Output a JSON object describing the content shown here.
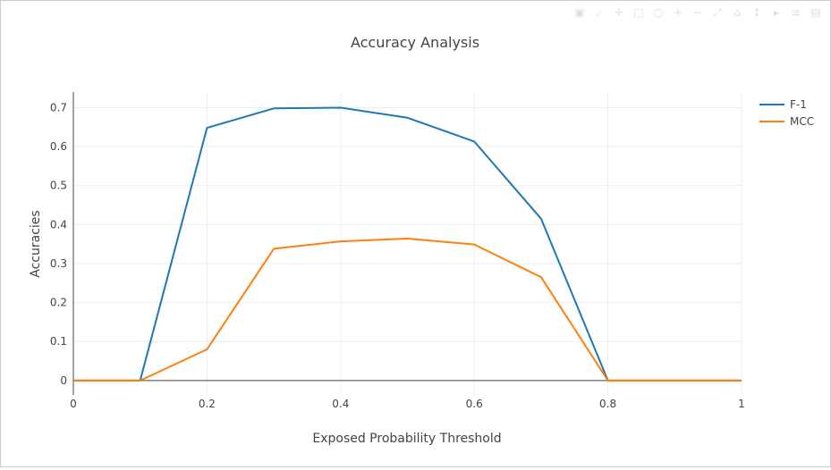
{
  "chart_data": {
    "type": "line",
    "title": "Accuracy Analysis",
    "xlabel": "Exposed Probability Threshold",
    "ylabel": "Accuracies",
    "xlim": [
      0,
      1
    ],
    "ylim": [
      -0.037,
      0.74
    ],
    "x_ticks": [
      0,
      0.2,
      0.4,
      0.6,
      0.8,
      1
    ],
    "x_tick_labels": [
      "0",
      "0.2",
      "0.4",
      "0.6",
      "0.8",
      "1"
    ],
    "y_ticks": [
      0,
      0.1,
      0.2,
      0.3,
      0.4,
      0.5,
      0.6,
      0.7
    ],
    "y_tick_labels": [
      "0",
      "0.1",
      "0.2",
      "0.3",
      "0.4",
      "0.5",
      "0.6",
      "0.7"
    ],
    "grid": true,
    "legend_position": "top-right",
    "x": [
      0,
      0.1,
      0.2,
      0.3,
      0.4,
      0.5,
      0.6,
      0.7,
      0.8,
      0.9,
      1.0
    ],
    "series": [
      {
        "name": "F-1",
        "color": "#1f77b4",
        "values": [
          0,
          0,
          0.648,
          0.698,
          0.7,
          0.674,
          0.613,
          0.415,
          0,
          0,
          0
        ]
      },
      {
        "name": "MCC",
        "color": "#ff7f0e",
        "values": [
          0,
          0,
          0.08,
          0.338,
          0.357,
          0.364,
          0.349,
          0.265,
          0,
          0,
          0
        ]
      }
    ]
  },
  "modebar": {
    "icons": [
      "camera-icon",
      "zoom-icon",
      "pan-icon",
      "box-select-icon",
      "lasso-icon",
      "zoom-in-icon",
      "zoom-out-icon",
      "autoscale-icon",
      "reset-axes-icon",
      "spike-lines-icon",
      "hover-closest-icon",
      "hover-compare-icon",
      "plotly-logo-icon"
    ],
    "glyphs": [
      "▣",
      "⌕",
      "✛",
      "□",
      "○",
      "+",
      "−",
      "⤢",
      "⌂",
      "↕",
      "▸",
      "≡",
      "▤"
    ]
  }
}
